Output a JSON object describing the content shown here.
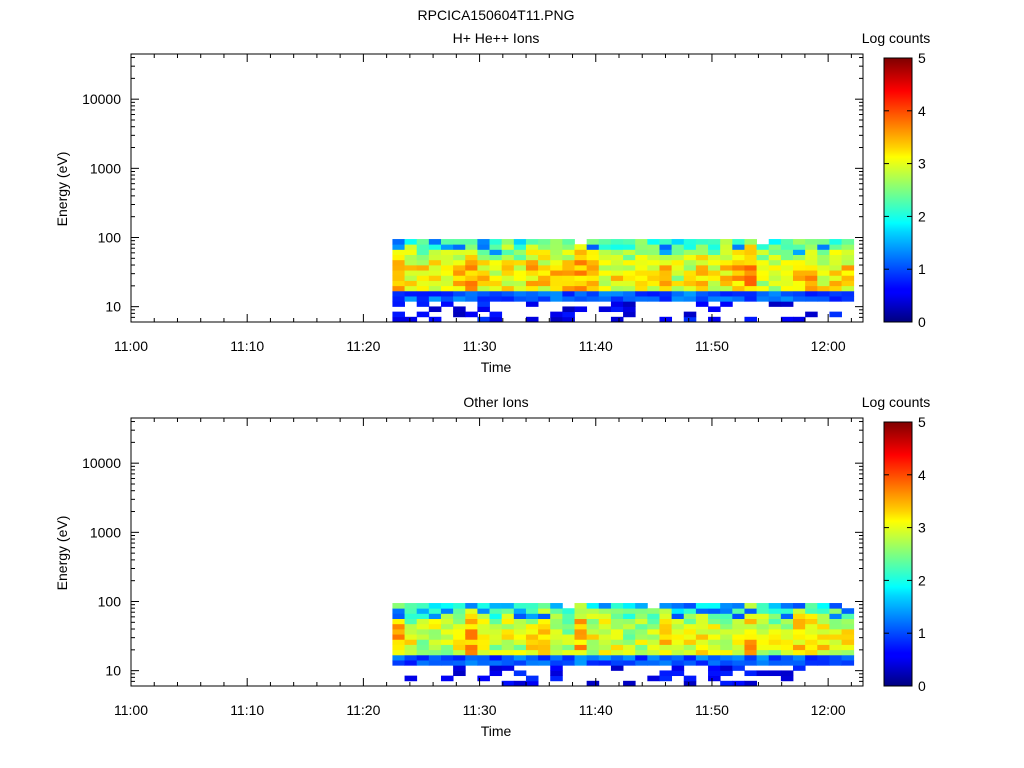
{
  "figure": {
    "title": "RPCICA150604T11.PNG"
  },
  "chart_data": [
    {
      "type": "heatmap",
      "title": "H+ He++ Ions",
      "xlabel": "Time",
      "ylabel": "Energy (eV)",
      "x_range": [
        "11:00",
        "12:03"
      ],
      "x_ticks": [
        "11:00",
        "11:10",
        "11:20",
        "11:30",
        "11:40",
        "11:50",
        "12:00"
      ],
      "y_scale": "log",
      "y_range": [
        6,
        45000
      ],
      "y_ticks": [
        10,
        100,
        1000,
        10000
      ],
      "y_tick_labels": [
        "10",
        "100",
        "1000",
        "10000"
      ],
      "colorbar": {
        "label": "Log counts",
        "range": [
          0,
          5
        ],
        "ticks": [
          "0",
          "1",
          "2",
          "3",
          "4",
          "5"
        ],
        "colormap": "jet"
      },
      "data_time_range": [
        "11:22.5",
        "12:02.2"
      ],
      "data_energy_range_eV": [
        6,
        95
      ],
      "peak_energy_eV": 28,
      "peak_log_counts": 3.6,
      "hotspot_times": [
        "11:23",
        "11:29",
        "11:36",
        "11:39",
        "11:53",
        "11:58"
      ],
      "seed": 11
    },
    {
      "type": "heatmap",
      "title": "Other Ions",
      "xlabel": "Time",
      "ylabel": "Energy (eV)",
      "x_range": [
        "11:00",
        "12:03"
      ],
      "x_ticks": [
        "11:00",
        "11:10",
        "11:20",
        "11:30",
        "11:40",
        "11:50",
        "12:00"
      ],
      "y_scale": "log",
      "y_range": [
        6,
        45000
      ],
      "y_ticks": [
        10,
        100,
        1000,
        10000
      ],
      "y_tick_labels": [
        "10",
        "100",
        "1000",
        "10000"
      ],
      "colorbar": {
        "label": "Log counts",
        "range": [
          0,
          5
        ],
        "ticks": [
          "0",
          "1",
          "2",
          "3",
          "4",
          "5"
        ],
        "colormap": "jet"
      },
      "data_time_range": [
        "11:22.5",
        "12:02.2"
      ],
      "data_energy_range_eV": [
        6,
        95
      ],
      "peak_energy_eV": 28,
      "peak_log_counts": 3.5,
      "hotspot_times": [
        "11:23",
        "11:29",
        "11:36",
        "11:39",
        "11:53",
        "11:58"
      ],
      "seed": 29
    }
  ]
}
